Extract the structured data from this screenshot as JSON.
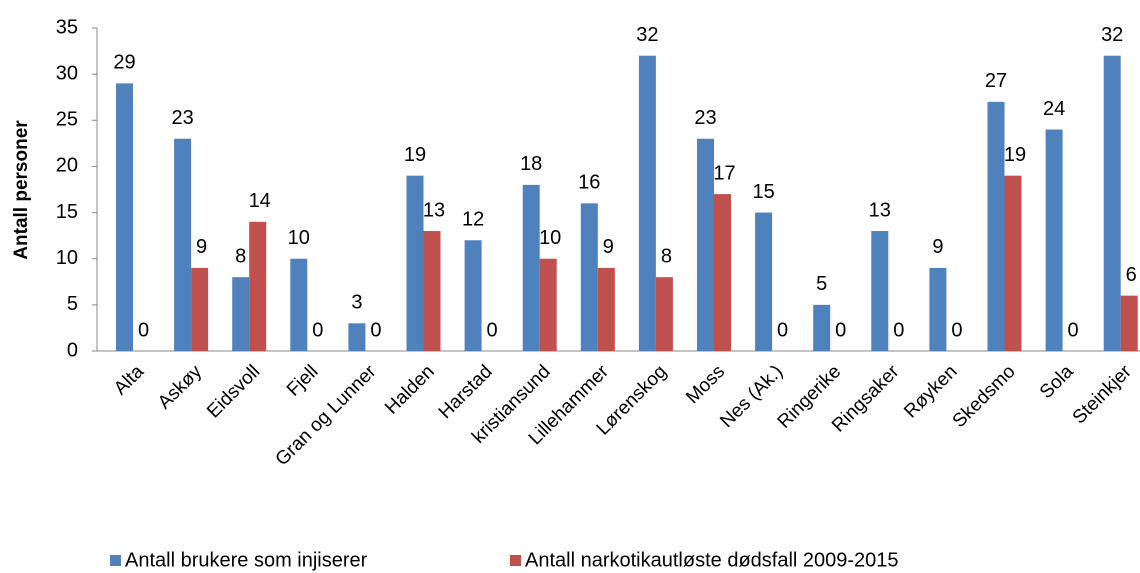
{
  "chart_data": {
    "type": "bar",
    "ylabel": "Antall personer",
    "categories": [
      "Alta",
      "Askøy",
      "Eidsvoll",
      "Fjell",
      "Gran og Lunner",
      "Halden",
      "Harstad",
      "kristiansund",
      "Lillehammer",
      "Lørenskog",
      "Moss",
      "Nes (Ak.)",
      "Ringerike",
      "Ringsaker",
      "Røyken",
      "Skedsmo",
      "Sola",
      "Steinkjer"
    ],
    "series": [
      {
        "name": "Antall brukere som injiserer",
        "color": "#4f81bd",
        "values": [
          29,
          23,
          8,
          10,
          3,
          19,
          12,
          18,
          16,
          32,
          23,
          15,
          5,
          13,
          9,
          27,
          24,
          32
        ]
      },
      {
        "name": "Antall narkotikautløste dødsfall 2009-2015",
        "color": "#c0504d",
        "values": [
          0,
          9,
          14,
          0,
          0,
          13,
          0,
          10,
          9,
          8,
          17,
          0,
          0,
          0,
          0,
          19,
          0,
          6
        ]
      }
    ],
    "ylim": [
      0,
      35
    ],
    "yticks": [
      0,
      5,
      10,
      15,
      20,
      25,
      30,
      35
    ],
    "legend": "bottom"
  }
}
